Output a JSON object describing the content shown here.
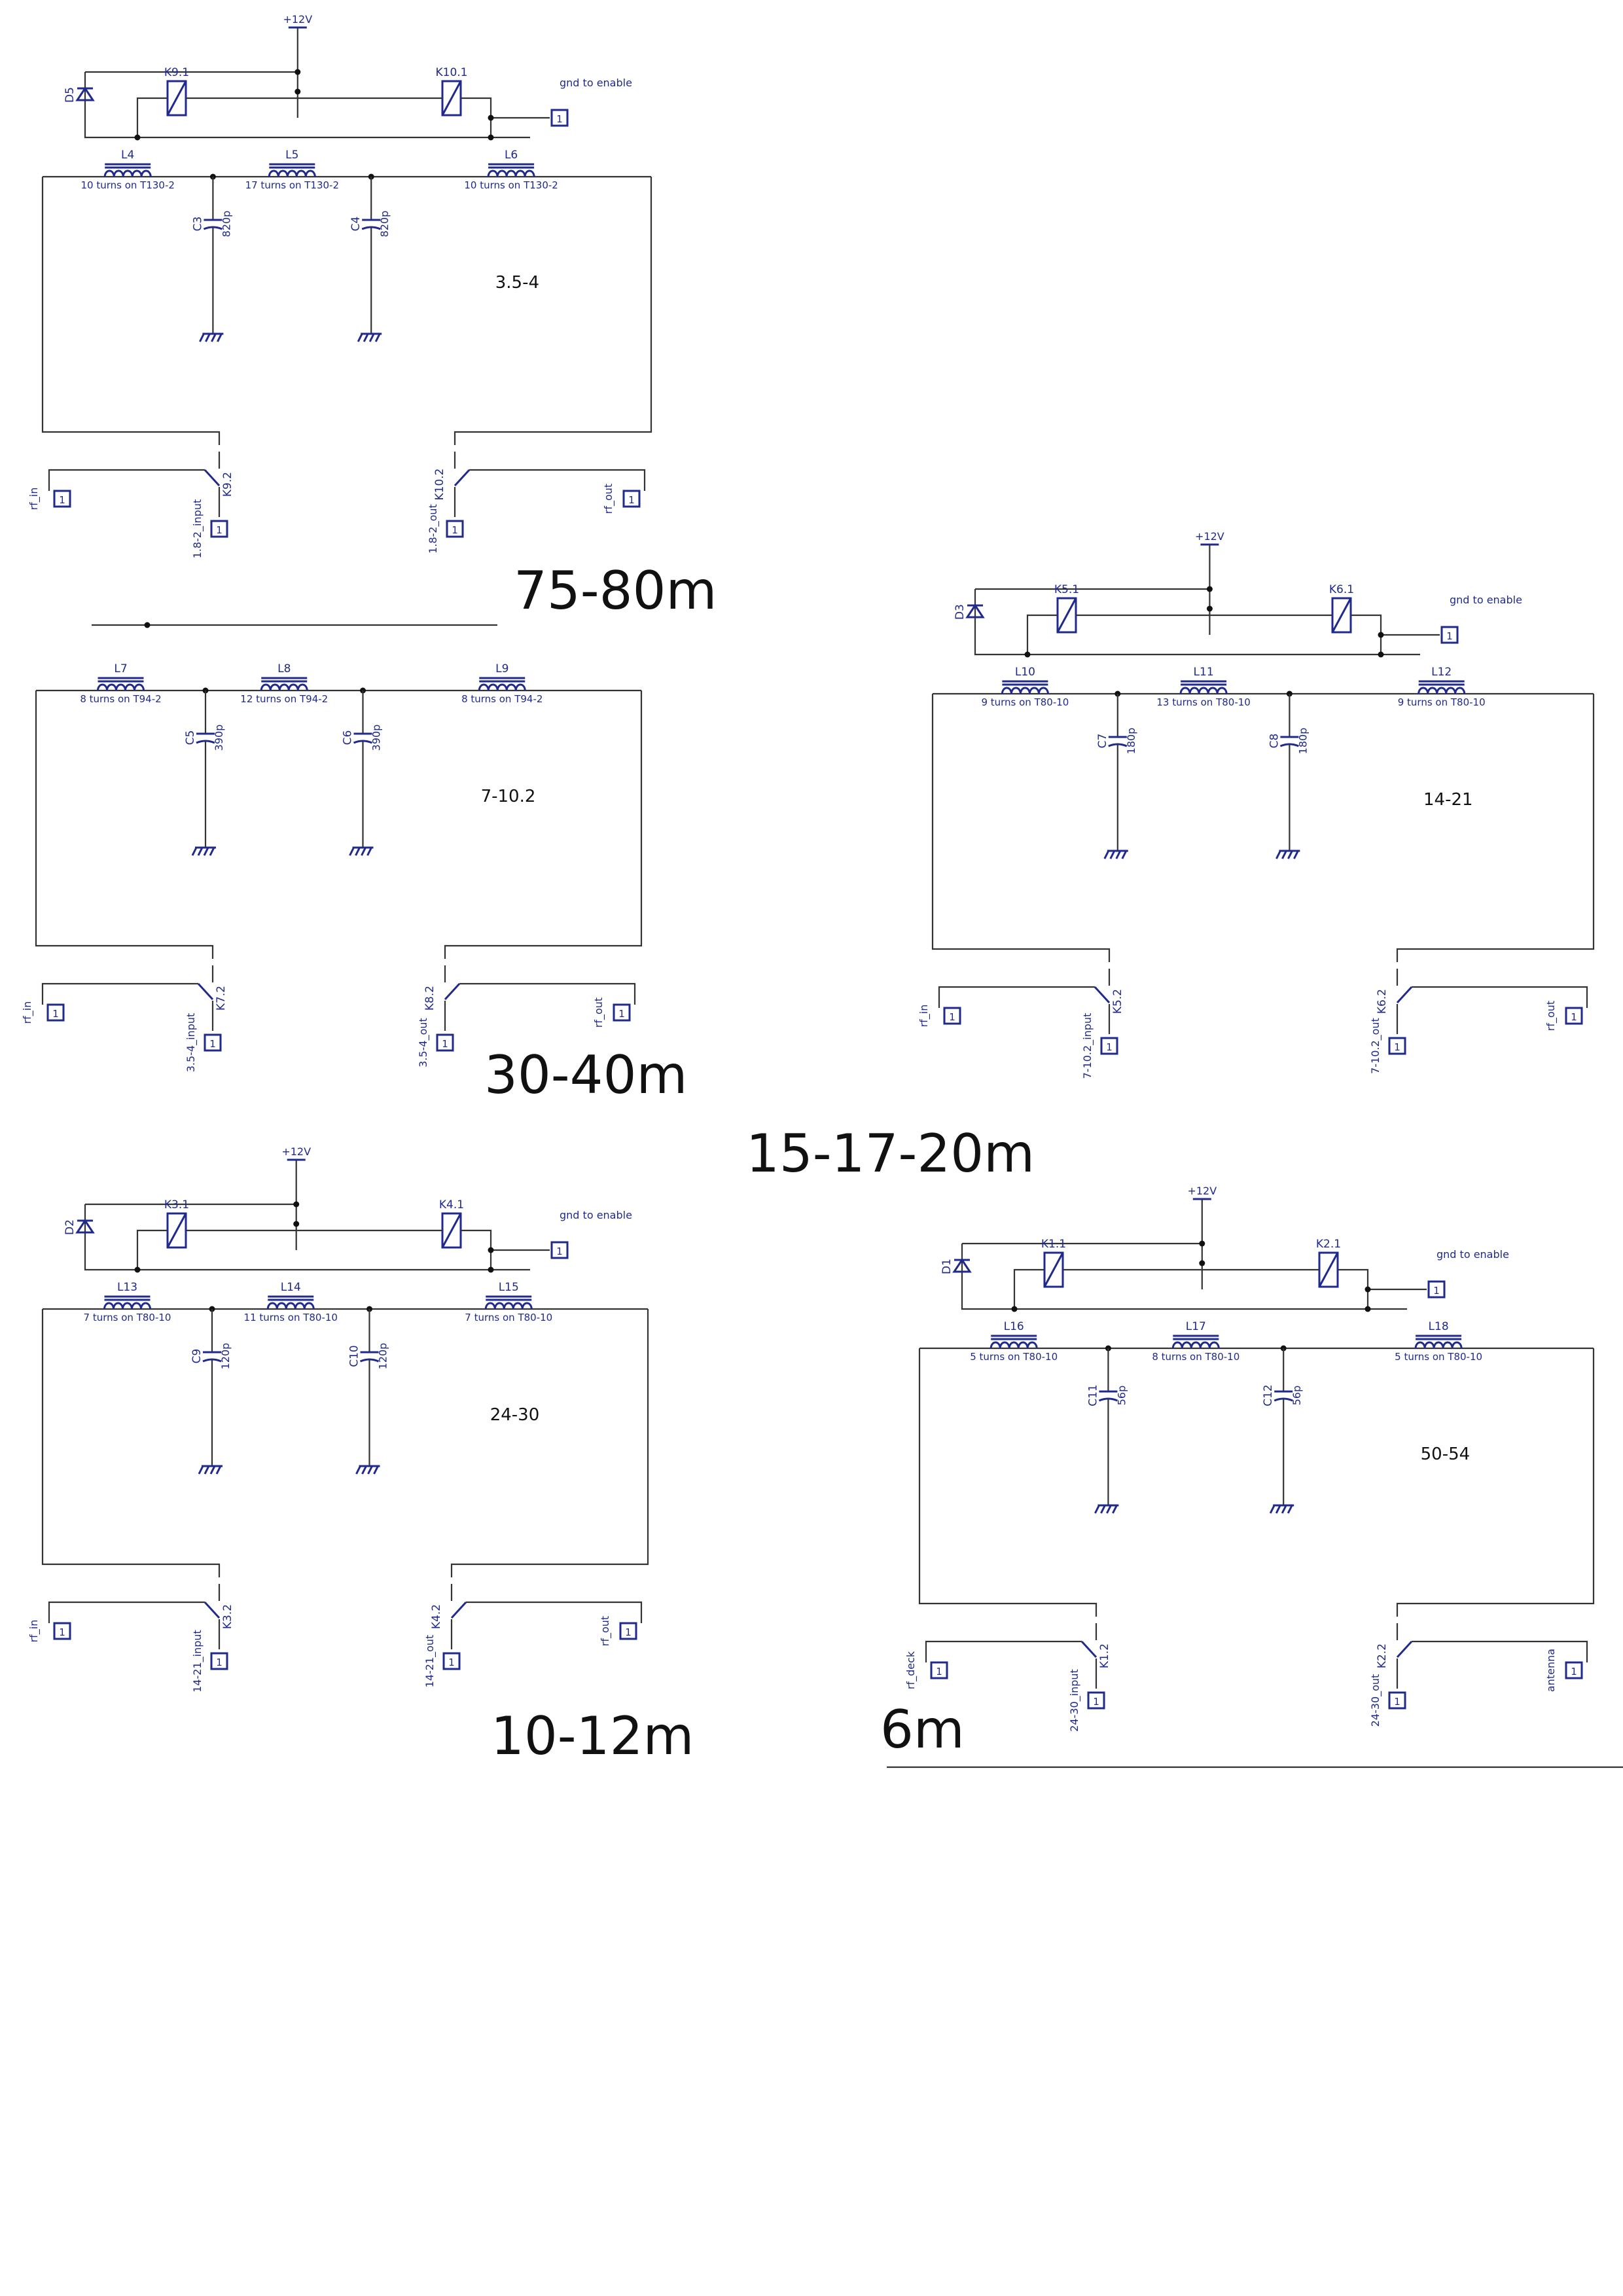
{
  "supply_label": "+12V",
  "enable_label": "gnd to enable",
  "connector_pin": "1",
  "sections": [
    {
      "title": "75-80m",
      "freq": "3.5-4",
      "relay_a": "K9",
      "relay_b": "K10",
      "diode": "D5",
      "inductors": [
        {
          "ref": "L4",
          "note": "10 turns on T130-2"
        },
        {
          "ref": "L5",
          "note": "17 turns on T130-2"
        },
        {
          "ref": "L6",
          "note": "10 turns on T130-2"
        }
      ],
      "caps": [
        {
          "ref": "C3",
          "value": "820p"
        },
        {
          "ref": "C4",
          "value": "820p"
        }
      ],
      "in_label": "rf_in",
      "out_label": "rf_out",
      "bypass_in": "1.8-2_input",
      "bypass_out": "1.8-2_out"
    },
    {
      "title": "30-40m",
      "freq": "7-10.2",
      "relay_a": "K7",
      "relay_b": "K8",
      "diode": "",
      "inductors": [
        {
          "ref": "L7",
          "note": "8 turns on T94-2"
        },
        {
          "ref": "L8",
          "note": "12 turns on T94-2"
        },
        {
          "ref": "L9",
          "note": "8 turns on T94-2"
        }
      ],
      "caps": [
        {
          "ref": "C5",
          "value": "390p"
        },
        {
          "ref": "C6",
          "value": "390p"
        }
      ],
      "in_label": "rf_in",
      "out_label": "rf_out",
      "bypass_in": "3.5-4_input",
      "bypass_out": "3.5-4_out"
    },
    {
      "title": "10-12m",
      "freq": "24-30",
      "relay_a": "K3",
      "relay_b": "K4",
      "diode": "D2",
      "inductors": [
        {
          "ref": "L13",
          "note": "7 turns on T80-10"
        },
        {
          "ref": "L14",
          "note": "11 turns on T80-10"
        },
        {
          "ref": "L15",
          "note": "7 turns on T80-10"
        }
      ],
      "caps": [
        {
          "ref": "C9",
          "value": "120p"
        },
        {
          "ref": "C10",
          "value": "120p"
        }
      ],
      "in_label": "rf_in",
      "out_label": "rf_out",
      "bypass_in": "14-21_input",
      "bypass_out": "14-21_out"
    },
    {
      "title": "15-17-20m",
      "freq": "14-21",
      "relay_a": "K5",
      "relay_b": "K6",
      "diode": "D3",
      "inductors": [
        {
          "ref": "L10",
          "note": "9 turns on T80-10"
        },
        {
          "ref": "L11",
          "note": "13 turns on T80-10"
        },
        {
          "ref": "L12",
          "note": "9 turns on T80-10"
        }
      ],
      "caps": [
        {
          "ref": "C7",
          "value": "180p"
        },
        {
          "ref": "C8",
          "value": "180p"
        }
      ],
      "in_label": "rf_in",
      "out_label": "rf_out",
      "bypass_in": "7-10.2_input",
      "bypass_out": "7-10.2_out"
    },
    {
      "title": "6m",
      "freq": "50-54",
      "relay_a": "K1",
      "relay_b": "K2",
      "diode": "D1",
      "inductors": [
        {
          "ref": "L16",
          "note": "5 turns on T80-10"
        },
        {
          "ref": "L17",
          "note": "8 turns on T80-10"
        },
        {
          "ref": "L18",
          "note": "5 turns on T80-10"
        }
      ],
      "caps": [
        {
          "ref": "C11",
          "value": "56p"
        },
        {
          "ref": "C12",
          "value": "56p"
        }
      ],
      "in_label": "rf_deck",
      "out_label": "antenna",
      "bypass_in": "24-30_input",
      "bypass_out": "24-30_out"
    }
  ]
}
